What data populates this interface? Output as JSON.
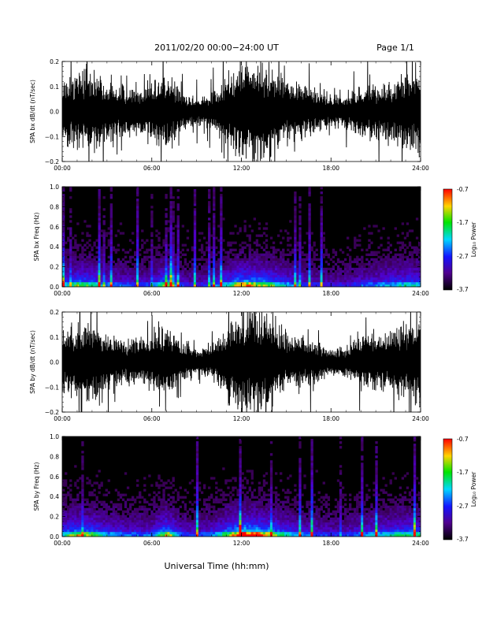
{
  "header": {
    "title": "2011/02/20   00:00−24:00 UT",
    "page": "Page 1/1"
  },
  "footer": {
    "xlabel": "Universal Time (hh:mm)"
  },
  "colorbar": {
    "label": "Log₁₀ Power",
    "ticks": [
      "-0.7",
      "-1.7",
      "-2.7",
      "-3.7"
    ],
    "colors": [
      "#ff0000",
      "#ffd400",
      "#00e400",
      "#00d8ff",
      "#1414ff",
      "#500090",
      "#000000"
    ]
  },
  "chart_data": [
    {
      "type": "line",
      "title": "",
      "xlabel": "",
      "ylabel": "SPA bx dB/dt (nT/sec)",
      "xlim": [
        0,
        24
      ],
      "ylim": [
        -0.2,
        0.2
      ],
      "xticks": [
        "00:00",
        "06:00",
        "12:00",
        "18:00",
        "24:00"
      ],
      "yticks": [
        "0.2",
        "0.1",
        "0.0",
        "−0.1",
        "−0.2"
      ],
      "x_hours": [
        0,
        1,
        2,
        3,
        4,
        5,
        6,
        7,
        8,
        9,
        10,
        11,
        12,
        13,
        14,
        15,
        16,
        17,
        18,
        19,
        20,
        21,
        22,
        23,
        24
      ],
      "envelope_amplitude": [
        0.14,
        0.16,
        0.17,
        0.13,
        0.11,
        0.1,
        0.12,
        0.18,
        0.08,
        0.06,
        0.08,
        0.15,
        0.22,
        0.22,
        0.2,
        0.13,
        0.12,
        0.09,
        0.07,
        0.07,
        0.11,
        0.12,
        0.13,
        0.17,
        0.2
      ]
    },
    {
      "type": "heatmap",
      "title": "",
      "xlabel": "",
      "ylabel": "SPA bx Freq (Hz)",
      "xlim": [
        0,
        24
      ],
      "ylim": [
        0,
        1
      ],
      "xticks": [
        "00:00",
        "06:00",
        "12:00",
        "18:00",
        "24:00"
      ],
      "yticks": [
        "1.0",
        "0.8",
        "0.6",
        "0.4",
        "0.2",
        "0.0"
      ],
      "color_scale": {
        "label": "Log₁₀ Power",
        "range": [
          -3.7,
          -0.7
        ]
      },
      "x_hours": [
        0,
        1,
        2,
        3,
        4,
        5,
        6,
        7,
        8,
        9,
        10,
        11,
        12,
        13,
        14,
        15,
        16,
        17,
        18,
        19,
        20,
        21,
        22,
        23,
        24
      ],
      "activity": [
        0.5,
        0.65,
        0.6,
        0.45,
        0.4,
        0.35,
        0.4,
        0.7,
        0.35,
        0.3,
        0.4,
        0.55,
        0.75,
        0.7,
        0.65,
        0.5,
        0.4,
        0.35,
        0.3,
        0.3,
        0.4,
        0.45,
        0.5,
        0.55,
        0.55
      ]
    },
    {
      "type": "line",
      "title": "",
      "xlabel": "",
      "ylabel": "SPA by dB/dt (nT/sec)",
      "xlim": [
        0,
        24
      ],
      "ylim": [
        -0.2,
        0.2
      ],
      "xticks": [
        "00:00",
        "06:00",
        "12:00",
        "18:00",
        "24:00"
      ],
      "yticks": [
        "0.2",
        "0.1",
        "0.0",
        "−0.1",
        "−0.2"
      ],
      "x_hours": [
        0,
        1,
        2,
        3,
        4,
        5,
        6,
        7,
        8,
        9,
        10,
        11,
        12,
        13,
        14,
        15,
        16,
        17,
        18,
        19,
        20,
        21,
        22,
        23,
        24
      ],
      "envelope_amplitude": [
        0.13,
        0.16,
        0.17,
        0.12,
        0.1,
        0.09,
        0.11,
        0.17,
        0.08,
        0.06,
        0.07,
        0.16,
        0.22,
        0.22,
        0.2,
        0.12,
        0.11,
        0.09,
        0.06,
        0.07,
        0.1,
        0.12,
        0.13,
        0.16,
        0.2
      ]
    },
    {
      "type": "heatmap",
      "title": "",
      "xlabel": "",
      "ylabel": "SPA by Freq (Hz)",
      "xlim": [
        0,
        24
      ],
      "ylim": [
        0,
        1
      ],
      "xticks": [
        "00:00",
        "06:00",
        "12:00",
        "18:00",
        "24:00"
      ],
      "yticks": [
        "1.0",
        "0.8",
        "0.6",
        "0.4",
        "0.2",
        "0.0"
      ],
      "color_scale": {
        "label": "Log₁₀ Power",
        "range": [
          -3.7,
          -0.7
        ]
      },
      "x_hours": [
        0,
        1,
        2,
        3,
        4,
        5,
        6,
        7,
        8,
        9,
        10,
        11,
        12,
        13,
        14,
        15,
        16,
        17,
        18,
        19,
        20,
        21,
        22,
        23,
        24
      ],
      "activity": [
        0.55,
        0.7,
        0.65,
        0.5,
        0.45,
        0.4,
        0.45,
        0.75,
        0.4,
        0.35,
        0.45,
        0.65,
        0.85,
        0.8,
        0.7,
        0.55,
        0.45,
        0.4,
        0.35,
        0.35,
        0.45,
        0.5,
        0.55,
        0.6,
        0.6
      ]
    }
  ]
}
